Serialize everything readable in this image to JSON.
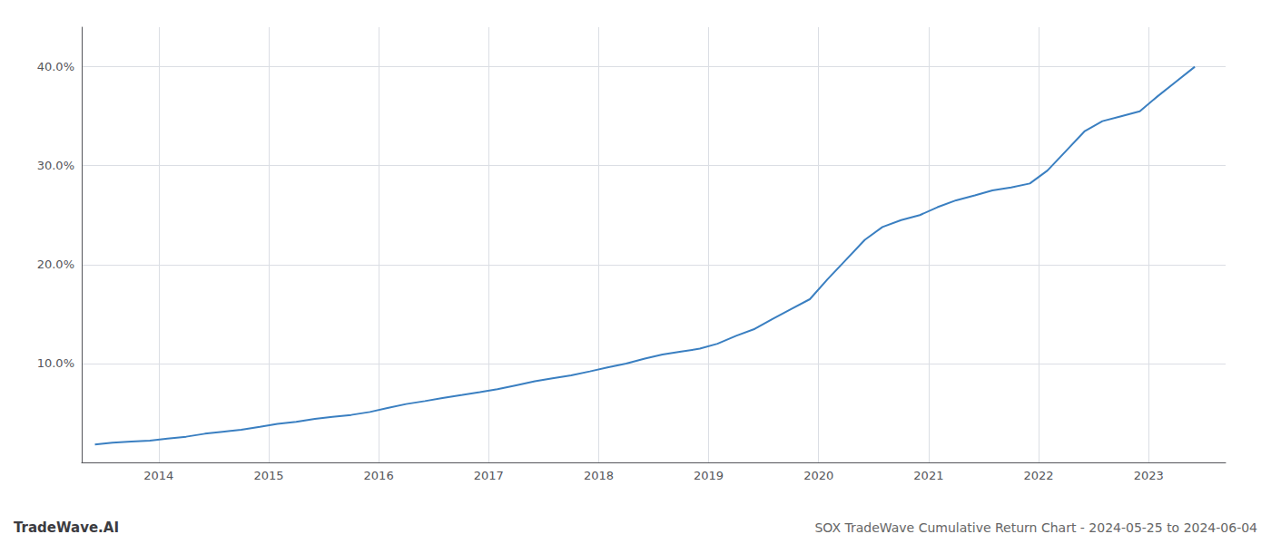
{
  "chart_data": {
    "type": "line",
    "title": "SOX TradeWave Cumulative Return Chart - 2024-05-25 to 2024-06-04",
    "annotations": [
      "TradeWave.AI"
    ],
    "color": "#3a7fc1",
    "x": [
      2013.42,
      2013.58,
      2013.75,
      2013.92,
      2014.08,
      2014.25,
      2014.42,
      2014.58,
      2014.75,
      2014.92,
      2015.08,
      2015.25,
      2015.42,
      2015.58,
      2015.75,
      2015.92,
      2016.08,
      2016.25,
      2016.42,
      2016.58,
      2016.75,
      2016.92,
      2017.08,
      2017.25,
      2017.42,
      2017.58,
      2017.75,
      2017.92,
      2018.08,
      2018.25,
      2018.42,
      2018.58,
      2018.75,
      2018.92,
      2019.08,
      2019.25,
      2019.42,
      2019.58,
      2019.75,
      2019.92,
      2020.08,
      2020.25,
      2020.42,
      2020.58,
      2020.75,
      2020.92,
      2021.08,
      2021.25,
      2021.42,
      2021.58,
      2021.75,
      2021.92,
      2022.08,
      2022.25,
      2022.42,
      2022.58,
      2022.75,
      2022.92,
      2023.08,
      2023.25,
      2023.42
    ],
    "values": [
      1.8,
      2.0,
      2.1,
      2.2,
      2.4,
      2.6,
      2.9,
      3.1,
      3.3,
      3.6,
      3.9,
      4.1,
      4.4,
      4.6,
      4.8,
      5.1,
      5.5,
      5.9,
      6.2,
      6.5,
      6.8,
      7.1,
      7.4,
      7.8,
      8.2,
      8.5,
      8.8,
      9.2,
      9.6,
      10.0,
      10.5,
      10.9,
      11.2,
      11.5,
      12.0,
      12.8,
      13.5,
      14.5,
      15.5,
      16.5,
      18.5,
      20.5,
      22.5,
      23.8,
      24.5,
      25.0,
      25.8,
      26.5,
      27.0,
      27.5,
      27.8,
      28.2,
      29.5,
      31.5,
      33.5,
      34.5,
      35.0,
      35.5,
      37.0,
      38.5,
      40.0
    ],
    "xlim": [
      2013.3,
      2023.7
    ],
    "xticks": [
      2014,
      2015,
      2016,
      2017,
      2018,
      2019,
      2020,
      2021,
      2022,
      2023
    ],
    "ylim": [
      0,
      44
    ],
    "yticks": [
      {
        "value": 10.0,
        "label": "10.0%"
      },
      {
        "value": 20.0,
        "label": "20.0%"
      },
      {
        "value": 30.0,
        "label": "30.0%"
      },
      {
        "value": 40.0,
        "label": "40.0%"
      }
    ],
    "grid": true
  }
}
